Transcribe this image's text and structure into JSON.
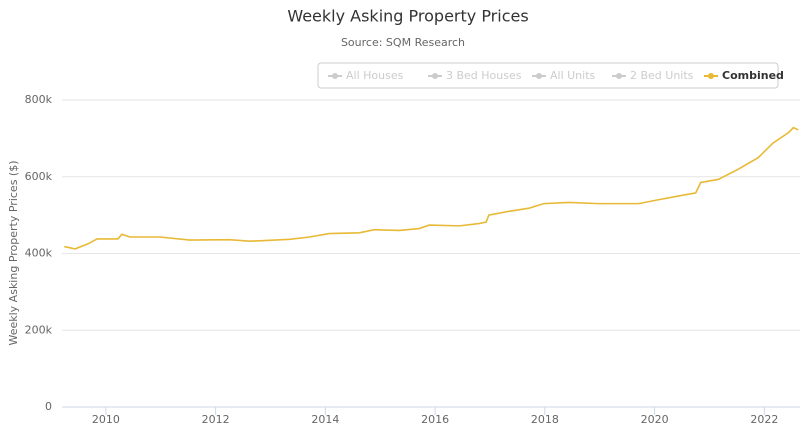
{
  "chart_data": {
    "type": "line",
    "title": "Weekly Asking Property Prices",
    "subtitle": "Source: SQM Research",
    "y_label": "Weekly Asking Property Prices ($)",
    "legend": [
      {
        "name": "All Houses",
        "visible": false
      },
      {
        "name": "3 Bed Houses",
        "visible": false
      },
      {
        "name": "All Units",
        "visible": false
      },
      {
        "name": "2 Bed Units",
        "visible": false
      },
      {
        "name": "Combined",
        "visible": true
      }
    ],
    "x": [
      2009.24,
      2009.44,
      2009.67,
      2009.84,
      2010.22,
      2010.29,
      2010.44,
      2010.98,
      2011.53,
      2012.25,
      2012.62,
      2013.35,
      2013.71,
      2014.07,
      2014.62,
      2014.89,
      2015.35,
      2015.71,
      2015.89,
      2016.44,
      2016.8,
      2016.93,
      2016.98,
      2017.35,
      2017.71,
      2017.98,
      2018.44,
      2018.98,
      2019.71,
      2020.07,
      2020.44,
      2020.75,
      2020.84,
      2021.16,
      2021.53,
      2021.89,
      2022.16,
      2022.44,
      2022.53,
      2022.62
    ],
    "series": [
      {
        "name": "Combined",
        "color": "#e8b936",
        "values": [
          418000,
          412000,
          425000,
          438000,
          438000,
          450000,
          443000,
          443000,
          435000,
          436000,
          432000,
          437000,
          443000,
          452000,
          454000,
          462000,
          460000,
          465000,
          474000,
          472000,
          478000,
          482000,
          500000,
          510000,
          518000,
          530000,
          533000,
          530000,
          530000,
          540000,
          550000,
          558000,
          585000,
          593000,
          620000,
          650000,
          688000,
          715000,
          728000,
          722000
        ]
      }
    ],
    "xlim": [
      2009.2,
      2022.65
    ],
    "xticks": [
      2010,
      2012,
      2014,
      2016,
      2018,
      2020,
      2022
    ],
    "ylim": [
      0,
      800000
    ],
    "yticks": [
      0,
      {
        "value": 200000,
        "label": "200k"
      },
      {
        "value": 400000,
        "label": "400k"
      },
      {
        "value": 600000,
        "label": "600k"
      },
      {
        "value": 800000,
        "label": "800k"
      }
    ],
    "grid": true
  }
}
